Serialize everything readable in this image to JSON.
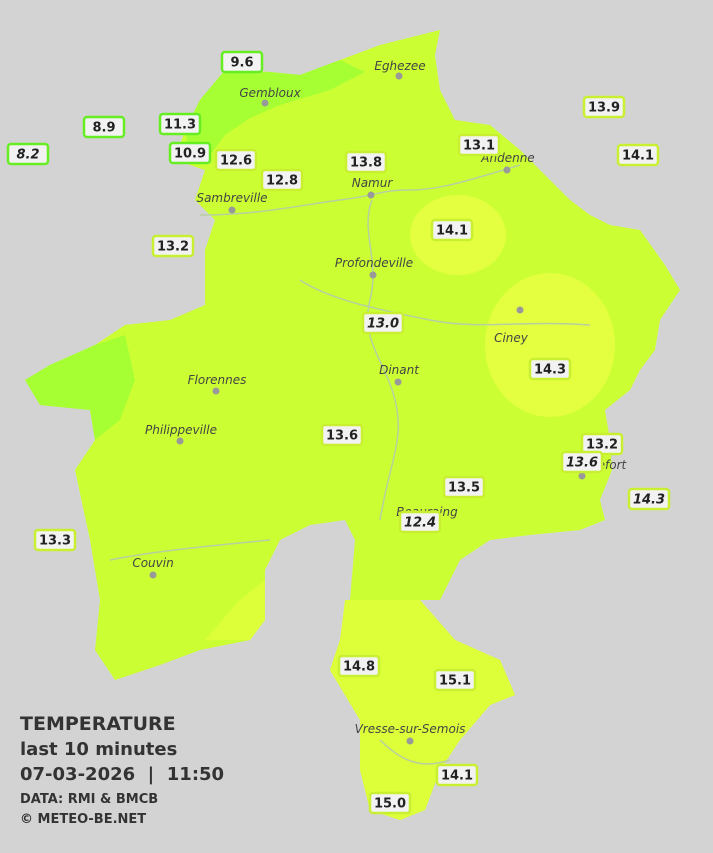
{
  "legend": {
    "title": "TEMPERATURE",
    "subtitle": "last 10 minutes",
    "datetime": "07-03-2026  |  11:50",
    "source": "DATA: RMI & BMCB",
    "copyright": "© METEO-BE.NET"
  },
  "cities": [
    "Eghezee",
    "Gembloux",
    "Andenne",
    "Namur",
    "Sambreville",
    "Profondeville",
    "Ciney",
    "Dinant",
    "Florennes",
    "Philippeville",
    "Rochefort",
    "Beauraing",
    "Couvin",
    "Vresse-sur-Semois"
  ],
  "stations": [
    "9.6",
    "8.9",
    "11.3",
    "10.9",
    "8.2",
    "12.6",
    "12.8",
    "13.8",
    "13.1",
    "13.9",
    "14.1",
    "13.2",
    "14.1",
    "13.0",
    "14.3",
    "13.6",
    "13.2",
    "13.6",
    "13.5",
    "14.3",
    "12.4",
    "13.3",
    "14.8",
    "15.1",
    "14.1",
    "15.0"
  ]
}
